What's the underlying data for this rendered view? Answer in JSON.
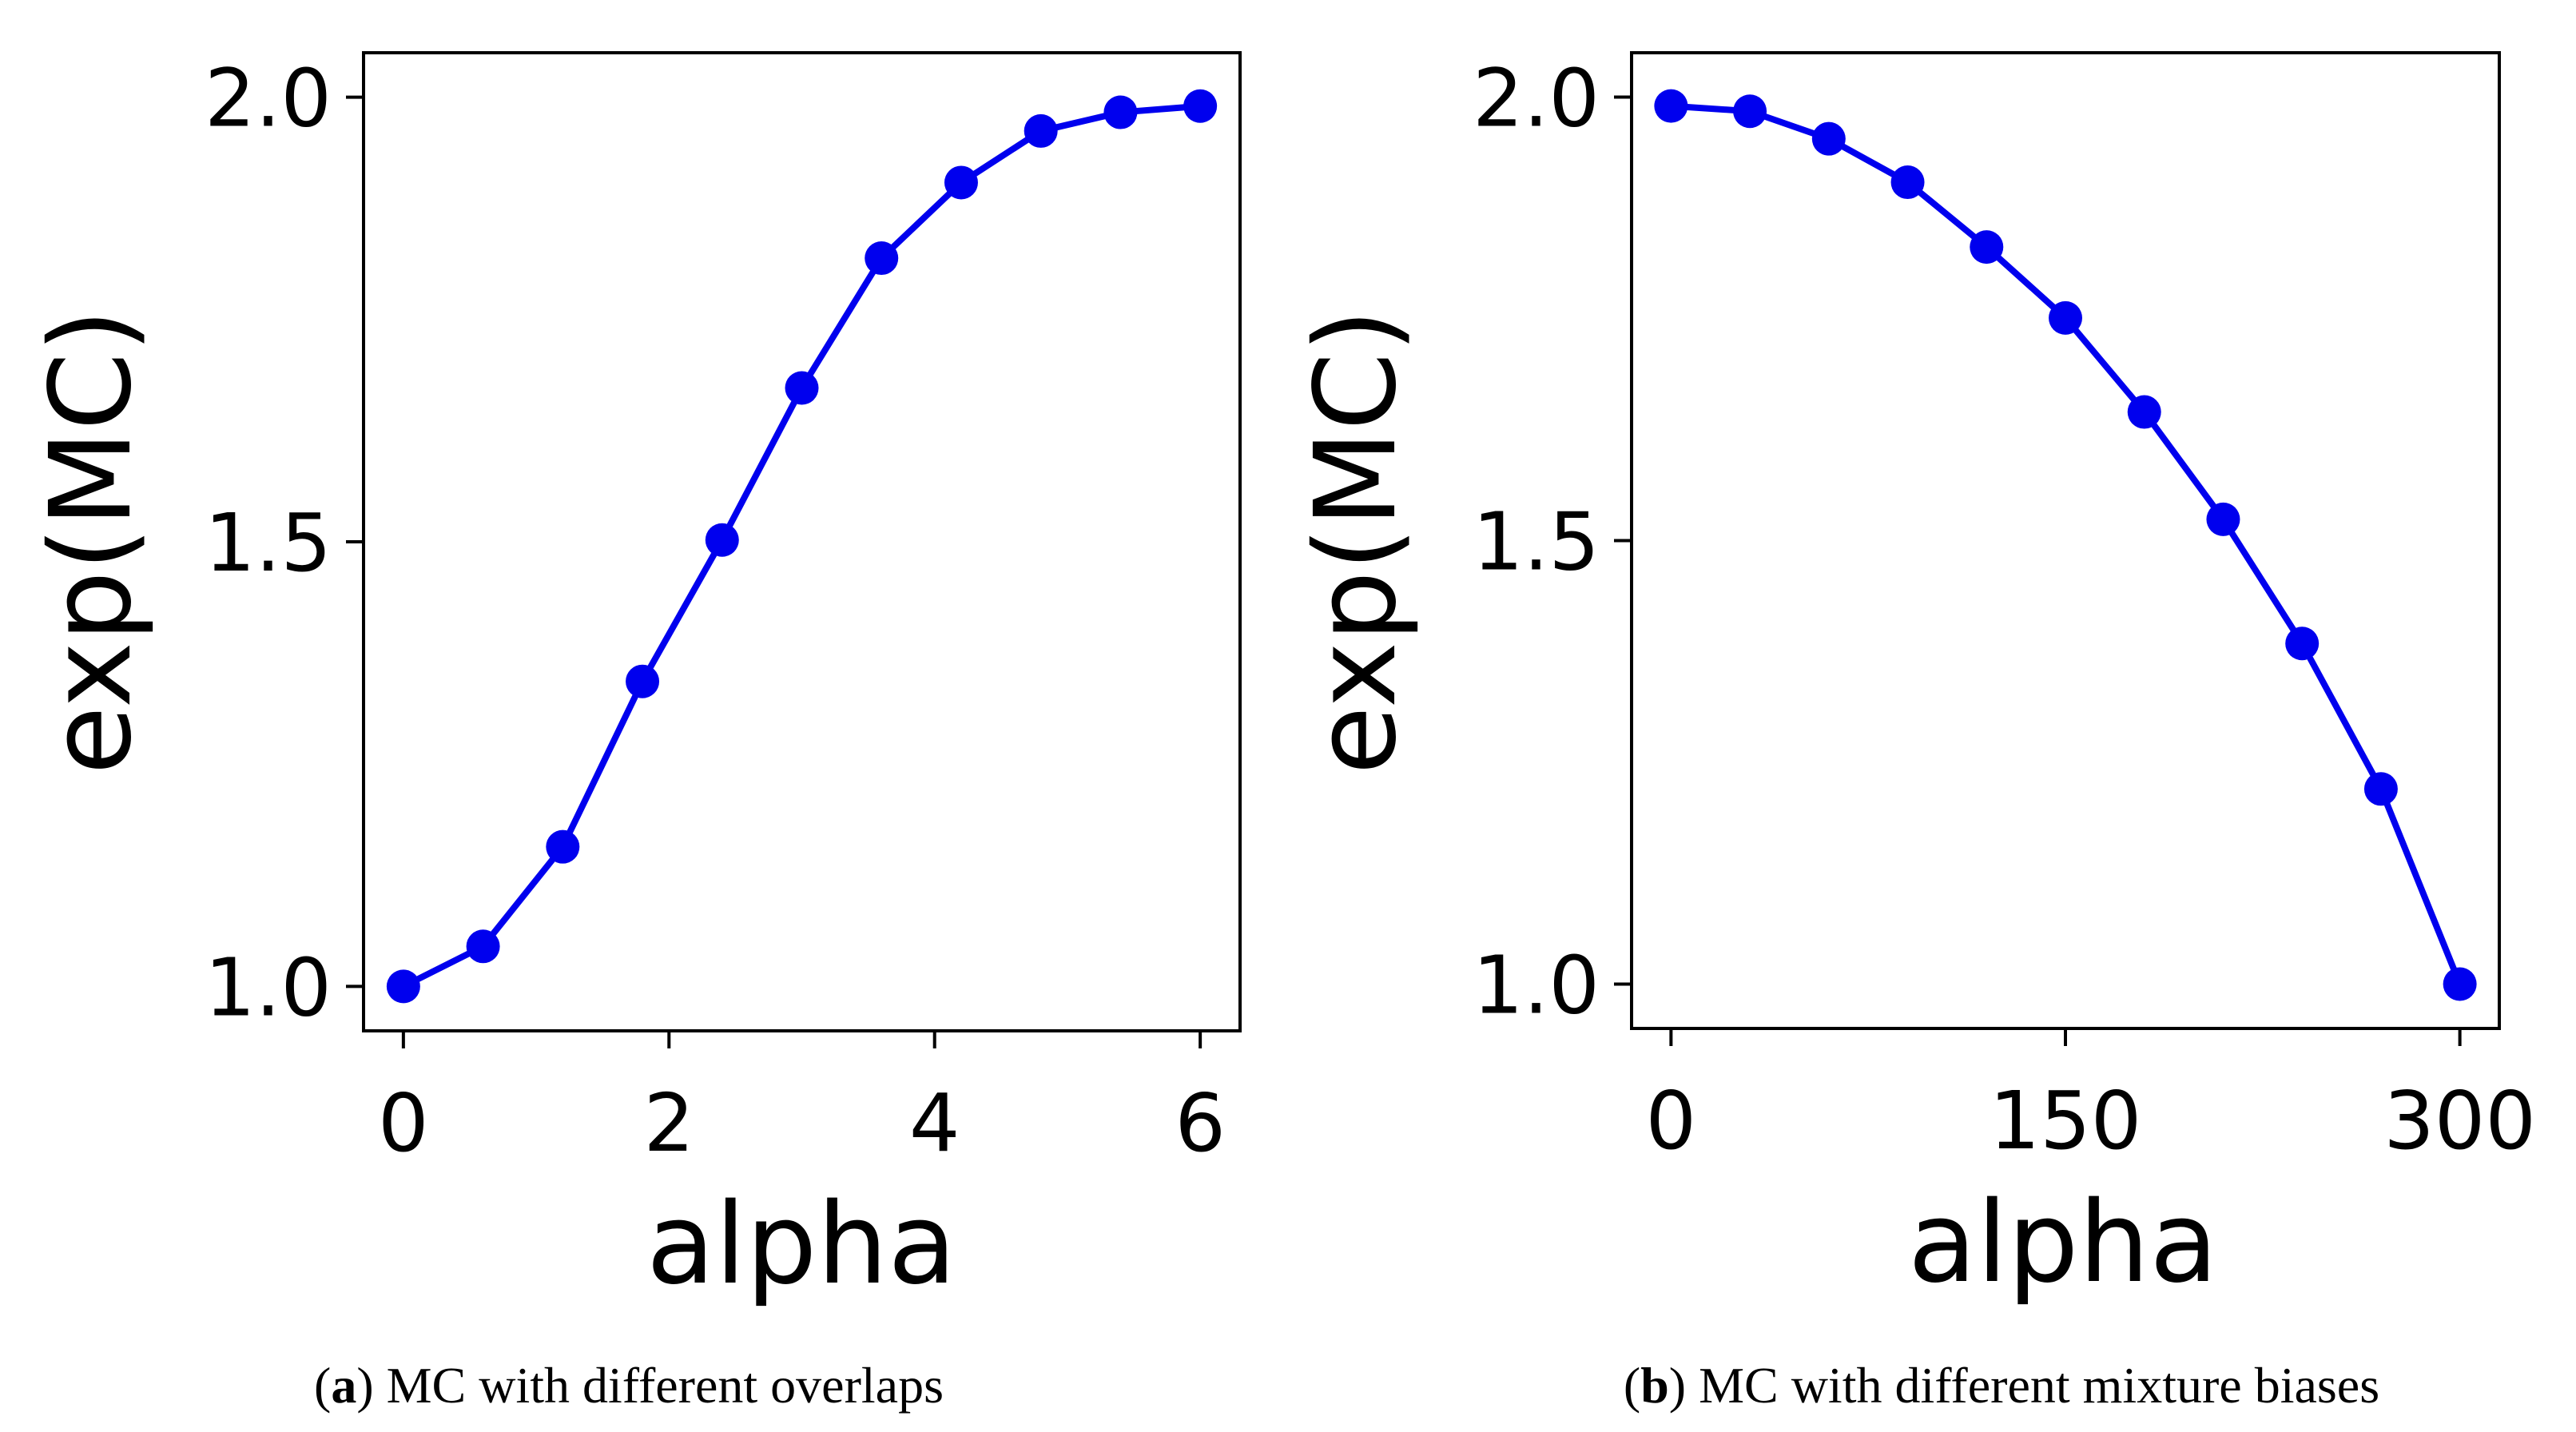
{
  "chart_data": [
    {
      "type": "line",
      "xlabel": "alpha",
      "ylabel": "exp(MC)",
      "xlim": [
        -0.3,
        6.3
      ],
      "ylim": [
        0.95,
        2.05
      ],
      "xticks": [
        0,
        2,
        4,
        6
      ],
      "xtick_labels": [
        "0",
        "2",
        "4",
        "6"
      ],
      "yticks": [
        1.0,
        1.5,
        2.0
      ],
      "ytick_labels": [
        "1.0",
        "1.5",
        "2.0"
      ],
      "x": [
        0,
        0.6,
        1.2,
        1.8,
        2.4,
        3.0,
        3.6,
        4.2,
        4.8,
        5.4,
        6.0
      ],
      "series": [
        {
          "name": "MC",
          "color": "#0000ee",
          "values": [
            1.0,
            1.045,
            1.157,
            1.343,
            1.502,
            1.673,
            1.819,
            1.904,
            1.962,
            1.983,
            1.99
          ]
        }
      ],
      "caption_label": "a",
      "caption_text": "MC with different overlaps"
    },
    {
      "type": "line",
      "xlabel": "alpha",
      "ylabel": "exp(MC)",
      "xlim": [
        -15,
        315
      ],
      "ylim": [
        0.95,
        2.05
      ],
      "xticks": [
        0,
        150,
        300
      ],
      "xtick_labels": [
        "0",
        "150",
        "300"
      ],
      "yticks": [
        1.0,
        1.5,
        2.0
      ],
      "ytick_labels": [
        "1.0",
        "1.5",
        "2.0"
      ],
      "x": [
        0,
        30,
        60,
        90,
        120,
        150,
        180,
        210,
        240,
        270,
        300
      ],
      "series": [
        {
          "name": "MC",
          "color": "#0000ee",
          "values": [
            1.99,
            1.984,
            1.953,
            1.904,
            1.831,
            1.751,
            1.645,
            1.524,
            1.384,
            1.22,
            1.0
          ]
        }
      ],
      "caption_label": "b",
      "caption_text": "MC with different mixture biases"
    }
  ]
}
